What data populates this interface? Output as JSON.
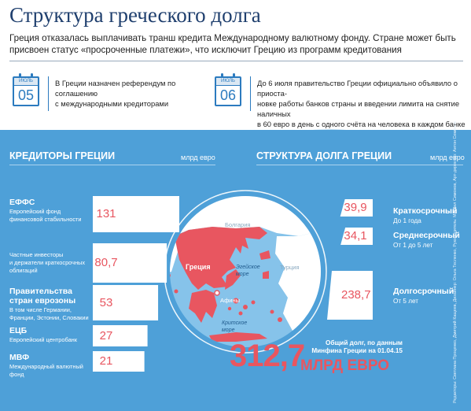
{
  "title": "Структура греческого долга",
  "lead": "Греция отказалась выплачивать транш кредита Международному валютному фонду. Стране может быть присвоен статус «просроченные платежи», что исключит Грецию из программ кредитования",
  "events": [
    {
      "month": "ИЮЛЬ",
      "day": "05",
      "text_lines": [
        "В Греции назначен референдум по соглашению",
        "с международными кредиторами"
      ]
    },
    {
      "month": "ИЮЛЬ",
      "day": "06",
      "text_lines": [
        "До 6 июля правительство Греции официально объявило о приоста-",
        "новке работы банков страны и введении лимита на снятие наличных",
        "в 60 евро в день с одного счёта на человека в каждом банке"
      ]
    }
  ],
  "colors": {
    "panel": "#4ea0d8",
    "accent": "#e85660",
    "navy": "#1f3f6e",
    "calendar": "#2c7bbf",
    "map_sea": "#86c3ea",
    "land": "#ffffff"
  },
  "creditors": {
    "heading": "КРЕДИТОРЫ ГРЕЦИИ",
    "unit": "млрд евро",
    "items": [
      {
        "name": "ЕФФС",
        "desc_lines": [
          "Европейский фонд",
          "финансовой стабильности"
        ],
        "value_label": "131"
      },
      {
        "name": "",
        "desc_lines": [
          "Частные инвесторы",
          "и держатели краткосрочных",
          "облигаций"
        ],
        "value_label": "80,7"
      },
      {
        "name": "Правительства стран еврозоны",
        "desc_lines": [
          "В том числе Германии,",
          "Франции, Эстонии, Словакии"
        ],
        "value_label": "53"
      },
      {
        "name": "ЕЦБ",
        "desc_lines": [
          "Европейский центробанк"
        ],
        "value_label": "27"
      },
      {
        "name": "МВФ",
        "desc_lines": [
          "Международный валютный",
          "фонд"
        ],
        "value_label": "21"
      }
    ]
  },
  "maturity": {
    "heading": "СТРУКТУРА ДОЛГА ГРЕЦИИ",
    "unit": "млрд евро",
    "items": [
      {
        "name": "Краткосрочный",
        "desc": "До 1 года",
        "value_label": "39,9"
      },
      {
        "name": "Среднесрочный",
        "desc": "От 1 до 5 лет",
        "value_label": "34,1"
      },
      {
        "name": "Долгосрочный",
        "desc": "От 5 лет",
        "value_label": "238,7"
      }
    ]
  },
  "map": {
    "greece": "Греция",
    "athens": "Афины",
    "bulgaria": "Болгария",
    "turkey": "Турция",
    "aegean": [
      "Эгейское",
      "море"
    ],
    "cretan": [
      "Критское",
      "море"
    ]
  },
  "total": {
    "number": "312,7",
    "unit": "МЛРД ЕВРО",
    "note_lines": [
      "Общий долг, по данным",
      "Минфина Греции на 01.04.15"
    ]
  },
  "side_credit": "Редакторы: Светлана Проценко, Дмитрий Кащеев, Дизайнер: Ольга Тесленко, Руководитель: Михаил Симонов, Арт-директор: Антон Семенов",
  "chart_data": [
    {
      "type": "bar",
      "title": "КРЕДИТОРЫ ГРЕЦИИ",
      "ylabel": "млрд евро",
      "categories": [
        "ЕФФС",
        "Частные инвесторы и держатели краткосрочных облигаций",
        "Правительства стран еврозоны",
        "ЕЦБ",
        "МВФ"
      ],
      "values": [
        131,
        80.7,
        53,
        27,
        21
      ]
    },
    {
      "type": "bar",
      "title": "СТРУКТУРА ДОЛГА ГРЕЦИИ",
      "ylabel": "млрд евро",
      "categories": [
        "Краткосрочный",
        "Среднесрочный",
        "Долгосрочный"
      ],
      "values": [
        39.9,
        34.1,
        238.7
      ],
      "total": 312.7
    }
  ]
}
